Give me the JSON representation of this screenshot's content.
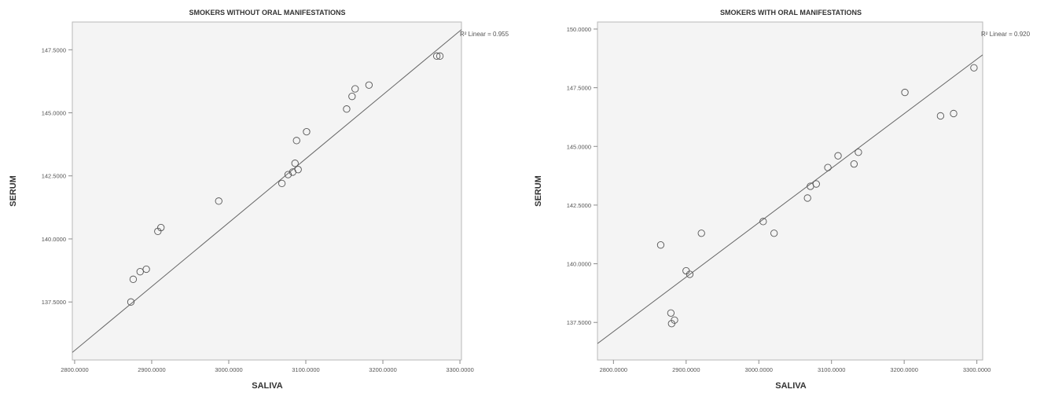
{
  "chart_data": [
    {
      "type": "scatter",
      "title": "SMOKERS WITHOUT ORAL MANIFESTATIONS",
      "xlabel": "SALIVA",
      "ylabel": "SERUM",
      "xlim": [
        2797,
        3302
      ],
      "ylim": [
        135.2,
        148.6
      ],
      "xticks": [
        "2800.0000",
        "2900.0000",
        "3000.0000",
        "3100.0000",
        "3200.0000",
        "3300.0000"
      ],
      "xtick_values": [
        2800,
        2900,
        3000,
        3100,
        3200,
        3300
      ],
      "yticks": [
        "137.5000",
        "140.0000",
        "142.5000",
        "145.0000",
        "147.5000"
      ],
      "ytick_values": [
        137.5,
        140,
        142.5,
        145,
        147.5
      ],
      "grid": false,
      "fit_line": {
        "type": "linear",
        "label": "R² Linear = 0.955",
        "x": [
          2797,
          3302
        ],
        "y": [
          135.5,
          148.3
        ]
      },
      "points": [
        {
          "x": 2873,
          "y": 137.5
        },
        {
          "x": 2876,
          "y": 138.4
        },
        {
          "x": 2885,
          "y": 138.7
        },
        {
          "x": 2893,
          "y": 138.8
        },
        {
          "x": 2908,
          "y": 140.3
        },
        {
          "x": 2912,
          "y": 140.45
        },
        {
          "x": 2987,
          "y": 141.5
        },
        {
          "x": 3069,
          "y": 142.2
        },
        {
          "x": 3077,
          "y": 142.55
        },
        {
          "x": 3083,
          "y": 142.65
        },
        {
          "x": 3086,
          "y": 143.0
        },
        {
          "x": 3090,
          "y": 142.75
        },
        {
          "x": 3088,
          "y": 143.9
        },
        {
          "x": 3101,
          "y": 144.25
        },
        {
          "x": 3153,
          "y": 145.15
        },
        {
          "x": 3160,
          "y": 145.65
        },
        {
          "x": 3164,
          "y": 145.95
        },
        {
          "x": 3182,
          "y": 146.1
        },
        {
          "x": 3270,
          "y": 147.25
        },
        {
          "x": 3274,
          "y": 147.25
        }
      ]
    },
    {
      "type": "scatter",
      "title": "SMOKERS WITH ORAL MANIFESTATIONS",
      "xlabel": "SALIVA",
      "ylabel": "SERUM",
      "xlim": [
        2778,
        3308
      ],
      "ylim": [
        135.9,
        150.3
      ],
      "xticks": [
        "2800.0000",
        "2900.0000",
        "3000.0000",
        "3100.0000",
        "3200.0000",
        "3300.0000"
      ],
      "xtick_values": [
        2800,
        2900,
        3000,
        3100,
        3200,
        3300
      ],
      "yticks": [
        "137.5000",
        "140.0000",
        "142.5000",
        "145.0000",
        "147.5000",
        "150.0000"
      ],
      "ytick_values": [
        137.5,
        140,
        142.5,
        145,
        147.5,
        150
      ],
      "grid": false,
      "fit_line": {
        "type": "linear",
        "label": "R² Linear = 0.920",
        "x": [
          2778,
          3308
        ],
        "y": [
          136.6,
          148.9
        ]
      },
      "points": [
        {
          "x": 2865,
          "y": 140.8
        },
        {
          "x": 2879,
          "y": 137.9
        },
        {
          "x": 2880,
          "y": 137.45
        },
        {
          "x": 2884,
          "y": 137.6
        },
        {
          "x": 2900,
          "y": 139.7
        },
        {
          "x": 2905,
          "y": 139.55
        },
        {
          "x": 2921,
          "y": 141.3
        },
        {
          "x": 3006,
          "y": 141.8
        },
        {
          "x": 3021,
          "y": 141.3
        },
        {
          "x": 3067,
          "y": 142.8
        },
        {
          "x": 3071,
          "y": 143.3
        },
        {
          "x": 3079,
          "y": 143.4
        },
        {
          "x": 3095,
          "y": 144.1
        },
        {
          "x": 3109,
          "y": 144.6
        },
        {
          "x": 3131,
          "y": 144.25
        },
        {
          "x": 3137,
          "y": 144.75
        },
        {
          "x": 3201,
          "y": 147.3
        },
        {
          "x": 3250,
          "y": 146.3
        },
        {
          "x": 3268,
          "y": 146.4
        },
        {
          "x": 3296,
          "y": 148.35
        }
      ]
    }
  ]
}
